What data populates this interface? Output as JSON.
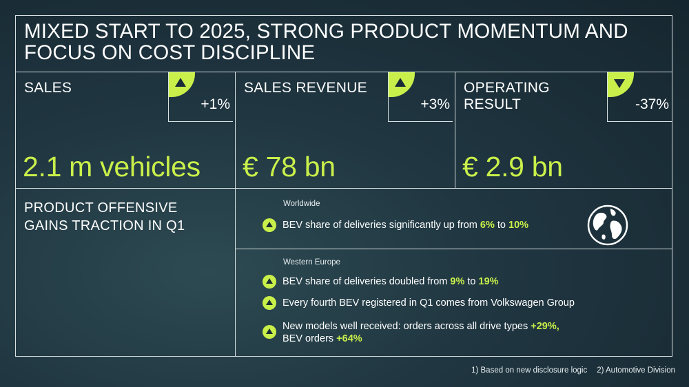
{
  "title": "MIXED START TO 2025, STRONG PRODUCT MOMENTUM AND FOCUS ON COST DISCIPLINE",
  "kpis": [
    {
      "label": "SALES",
      "change": "+1%",
      "direction": "up",
      "value": "2.1 m vehicles"
    },
    {
      "label": "SALES REVENUE",
      "change": "+3%",
      "direction": "up",
      "value": "€ 78 bn"
    },
    {
      "label": "OPERATING RESULT",
      "change": "-37%",
      "direction": "down",
      "value": "€ 2.9 bn"
    }
  ],
  "product": {
    "heading": "PRODUCT OFFENSIVE GAINS TRACTION IN Q1",
    "worldwide": {
      "region": "Worldwide",
      "bullet": {
        "pre": "BEV share of deliveries significantly up from ",
        "a": "6%",
        "mid": " to ",
        "b": "10%"
      }
    },
    "western_europe": {
      "region": "Western Europe",
      "bullet1": {
        "pre": "BEV share of deliveries doubled from ",
        "a": "9%",
        "mid": " to ",
        "b": "19%"
      },
      "bullet2": "Every fourth BEV registered in Q1 comes from Volkswagen Group",
      "bullet3": {
        "pre": "New models well received: orders across all drive types ",
        "a": "+29%,",
        "line2_pre": "BEV orders ",
        "b": "+64%"
      }
    }
  },
  "footnotes": [
    "1)  Based on new disclosure logic",
    "2) Automotive Division"
  ],
  "colors": {
    "accent": "#c9f04a",
    "background": "#1f3540",
    "lines": "#d8e0e2"
  },
  "icons": {
    "up": "triangle-up-icon",
    "down": "triangle-down-icon",
    "globe": "globe-icon"
  }
}
